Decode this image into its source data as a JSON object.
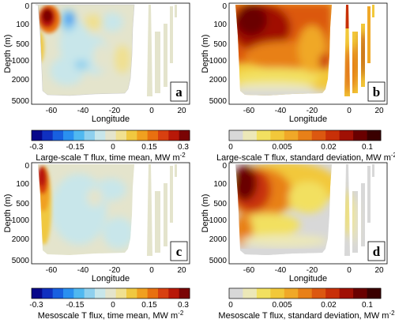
{
  "chart_data": [
    {
      "type": "heatmap",
      "panel_label": "a",
      "xlabel": "Longitude",
      "ylabel": "Depth (m)",
      "x_ticks": [
        "-60",
        "-40",
        "-20",
        "0",
        "20"
      ],
      "y_ticks": [
        "0",
        "100",
        "500",
        "1000",
        "2000",
        "5000"
      ],
      "xlim": [
        -75,
        27
      ],
      "colorbar": {
        "type": "diverging",
        "label_main": "Large-scale T flux, time mean, MW m",
        "label_sup": "-2",
        "ticks": [
          "-0.3",
          "-0.15",
          "0",
          "0.15",
          "0.3"
        ]
      }
    },
    {
      "type": "heatmap",
      "panel_label": "b",
      "xlabel": "Longitude",
      "ylabel": "Depth (m)",
      "x_ticks": [
        "-60",
        "-40",
        "-20",
        "0",
        "20"
      ],
      "y_ticks": [
        "0",
        "100",
        "500",
        "1000",
        "2000",
        "5000"
      ],
      "xlim": [
        -75,
        27
      ],
      "colorbar": {
        "type": "sequential",
        "label_main": "Large-scale T flux, standard deviation, MW m",
        "label_sup": "-2",
        "ticks": [
          "0",
          "0.005",
          "0.02",
          "0.1"
        ]
      }
    },
    {
      "type": "heatmap",
      "panel_label": "c",
      "xlabel": "Longitude",
      "ylabel": "Depth (m)",
      "x_ticks": [
        "-60",
        "-40",
        "-20",
        "0",
        "20"
      ],
      "y_ticks": [
        "0",
        "100",
        "500",
        "1000",
        "2000",
        "5000"
      ],
      "xlim": [
        -75,
        27
      ],
      "colorbar": {
        "type": "diverging",
        "label_main": "Mesoscale T flux, time mean, MW m",
        "label_sup": "-2",
        "ticks": [
          "-0.3",
          "-0.15",
          "0",
          "0.15",
          "0.3"
        ]
      }
    },
    {
      "type": "heatmap",
      "panel_label": "d",
      "xlabel": "Longitude",
      "ylabel": "Depth (m)",
      "x_ticks": [
        "-60",
        "-40",
        "-20",
        "0",
        "20"
      ],
      "y_ticks": [
        "0",
        "100",
        "500",
        "1000",
        "2000",
        "5000"
      ],
      "xlim": [
        -75,
        27
      ],
      "colorbar": {
        "type": "sequential",
        "label_main": "Mesoscale T flux, standard deviation, MW m",
        "label_sup": "-2",
        "ticks": [
          "0",
          "0.005",
          "0.02",
          "0.1"
        ]
      }
    }
  ],
  "colors": {
    "diverging": [
      "#08088a",
      "#1030c0",
      "#1860e0",
      "#2a90f0",
      "#50b8f0",
      "#8fd0ee",
      "#c8e6ea",
      "#e4e4cc",
      "#f0e090",
      "#f0c840",
      "#f0a020",
      "#e87010",
      "#d84010",
      "#b81808",
      "#7a0404"
    ],
    "sequential": [
      "#d8d8d8",
      "#ece8b8",
      "#f2e060",
      "#f2c83a",
      "#f0a828",
      "#e88018",
      "#dc5810",
      "#c83008",
      "#a01004",
      "#6a0000",
      "#3a0000"
    ]
  }
}
